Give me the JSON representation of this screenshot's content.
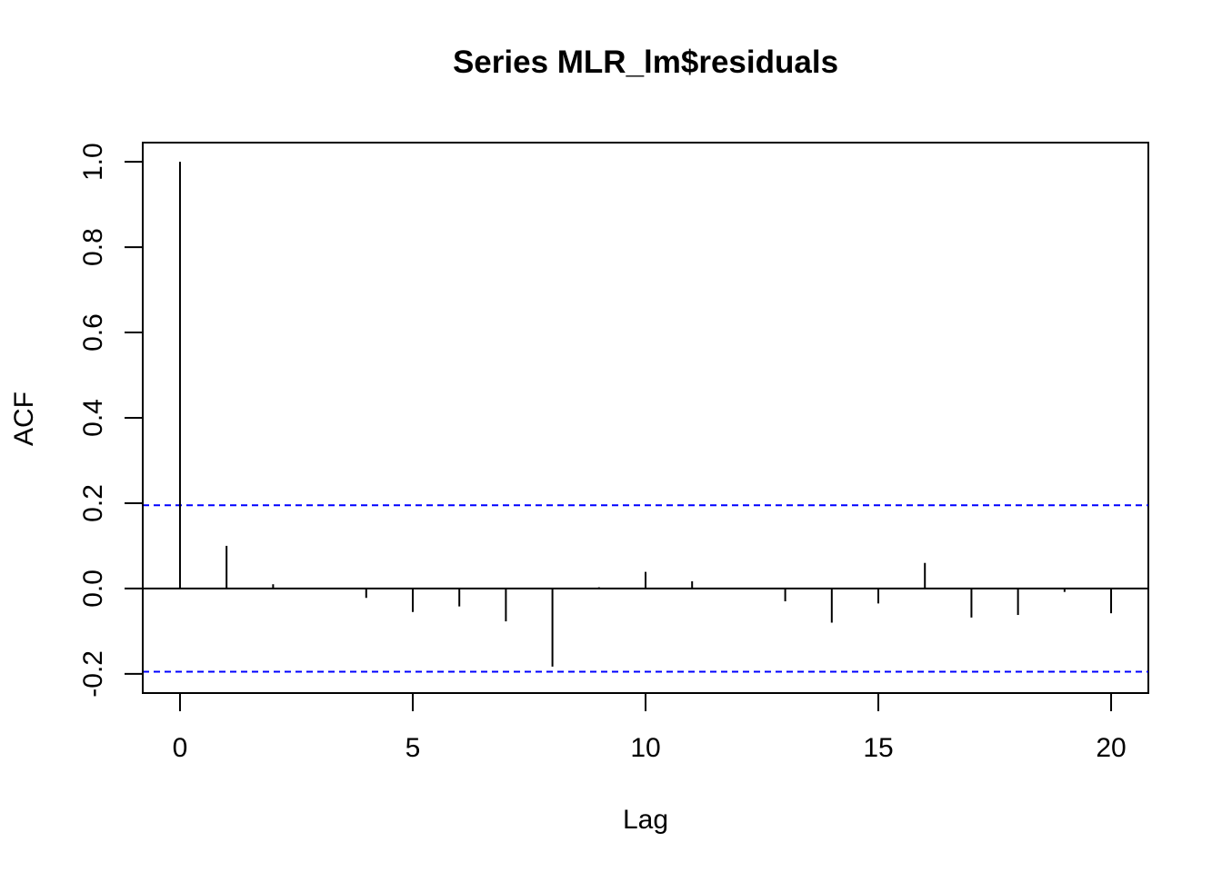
{
  "chart_data": {
    "type": "bar",
    "title": "Series  MLR_lm$residuals",
    "xlabel": "Lag",
    "ylabel": "ACF",
    "xlim": [
      -0.8,
      20.8
    ],
    "ylim": [
      -0.245,
      1.045
    ],
    "x_ticks": [
      0,
      5,
      10,
      15,
      20
    ],
    "y_ticks": [
      -0.2,
      0.0,
      0.2,
      0.4,
      0.6,
      0.8,
      1.0
    ],
    "y_tick_labels": [
      "-0.2",
      "0.0",
      "0.2",
      "0.4",
      "0.6",
      "0.8",
      "1.0"
    ],
    "confidence_limits": [
      0.195,
      -0.195
    ],
    "confidence_color": "#0000ff",
    "series": [
      {
        "lags": [
          0,
          1,
          2,
          3,
          4,
          5,
          6,
          7,
          8,
          9,
          10,
          11,
          12,
          13,
          14,
          15,
          16,
          17,
          18,
          19,
          20
        ],
        "values": [
          1.0,
          0.1,
          0.01,
          0.0,
          -0.022,
          -0.055,
          -0.042,
          -0.077,
          -0.183,
          0.003,
          0.039,
          0.017,
          0.0,
          -0.03,
          -0.08,
          -0.035,
          0.06,
          -0.068,
          -0.062,
          -0.008,
          -0.058
        ]
      }
    ],
    "grid": false,
    "legend": "none"
  }
}
